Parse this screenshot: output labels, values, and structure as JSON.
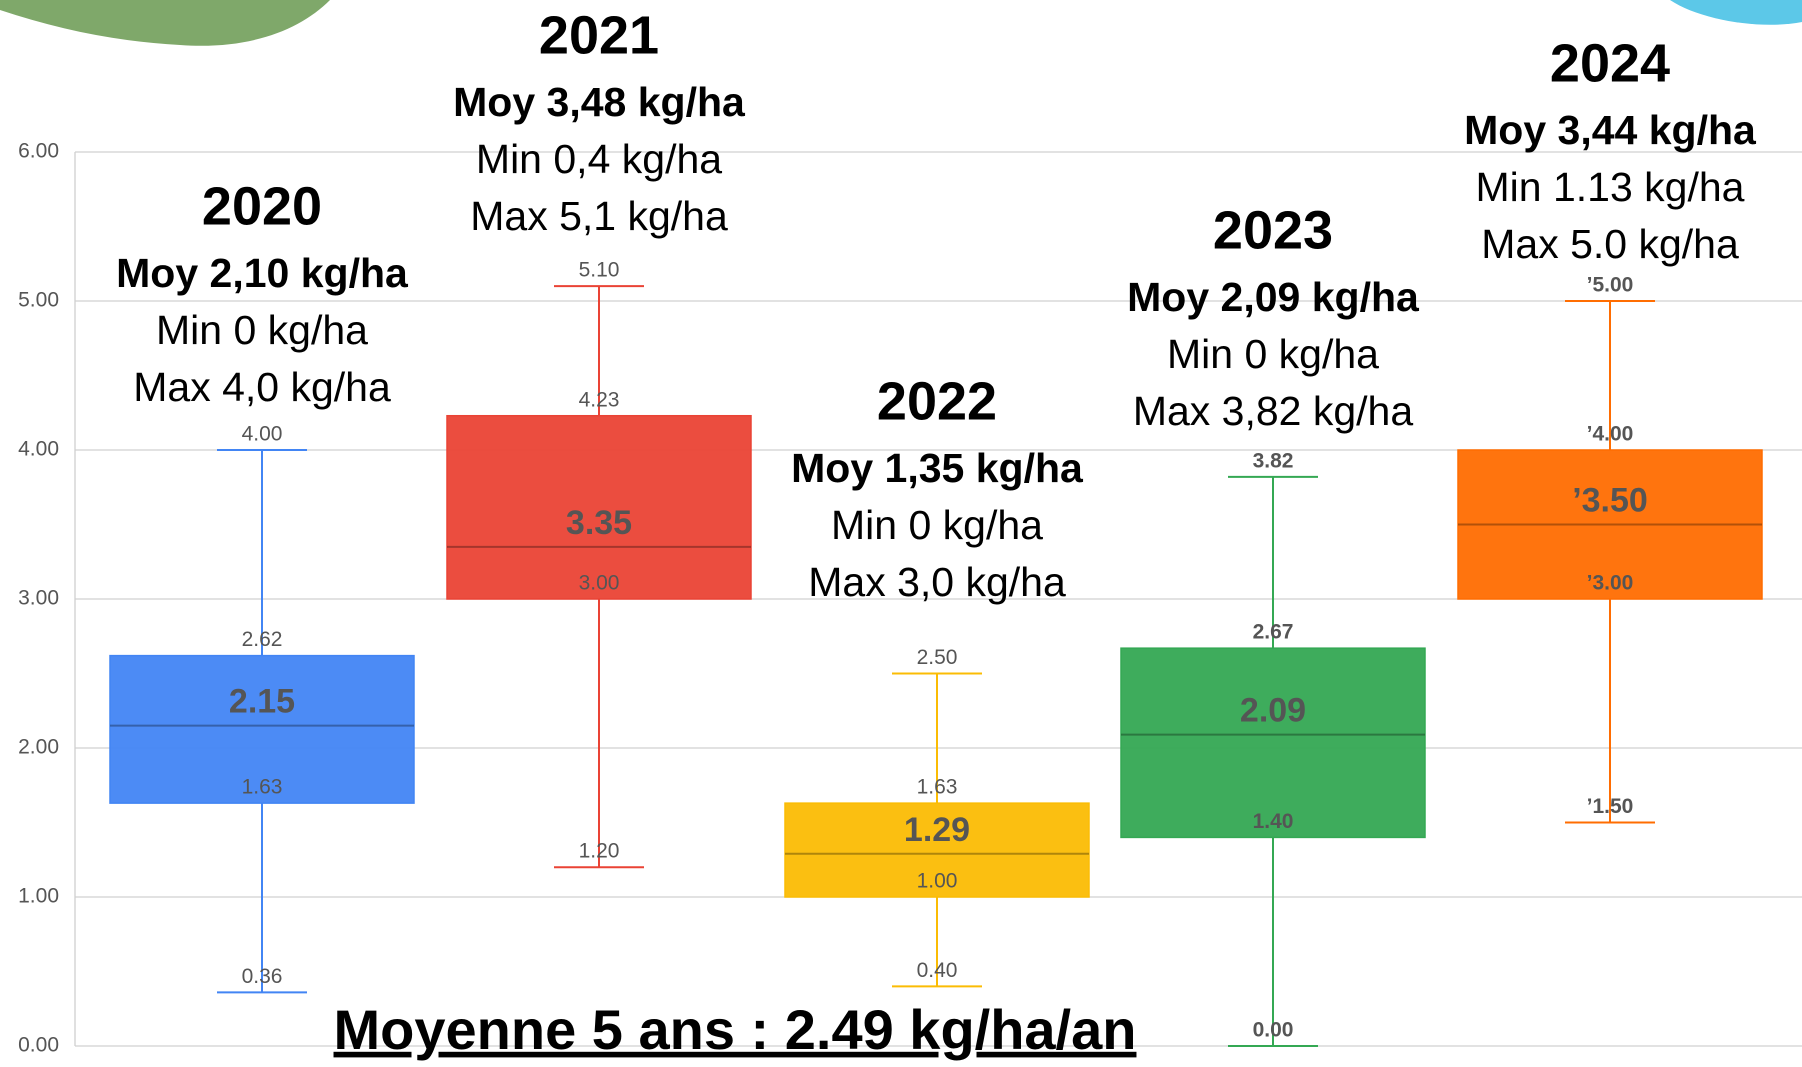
{
  "chart_data": {
    "type": "box",
    "ylim": [
      0,
      6
    ],
    "yticks": [
      {
        "value": 0,
        "label": "0.00"
      },
      {
        "value": 1,
        "label": "1.00"
      },
      {
        "value": 2,
        "label": "2.00"
      },
      {
        "value": 3,
        "label": "3.00"
      },
      {
        "value": 4,
        "label": "4.00"
      },
      {
        "value": 5,
        "label": "5.00"
      },
      {
        "value": 6,
        "label": "6.00"
      }
    ],
    "grid": true,
    "series": [
      {
        "name": "2020",
        "color": "#4285f4",
        "values": [
          0.36,
          1.63,
          2.15,
          2.62,
          4.0
        ],
        "value_labels": [
          "0.36",
          "1.63",
          "2.15",
          "2.62",
          "4.00"
        ],
        "annotations": [
          "Moy 2,10 kg/ha",
          "Min 0 kg/ha",
          "Max 4,0 kg/ha"
        ]
      },
      {
        "name": "2021",
        "color": "#ea4335",
        "values": [
          1.2,
          3.0,
          3.35,
          4.23,
          5.1
        ],
        "value_labels": [
          "1.20",
          "3.00",
          "3.35",
          "4.23",
          "5.10"
        ],
        "annotations": [
          "Moy 3,48 kg/ha",
          "Min 0,4 kg/ha",
          "Max 5,1 kg/ha"
        ]
      },
      {
        "name": "2022",
        "color": "#fbbc04",
        "values": [
          0.4,
          1.0,
          1.29,
          1.63,
          2.5
        ],
        "value_labels": [
          "0.40",
          "1.00",
          "1.29",
          "1.63",
          "2.50"
        ],
        "annotations": [
          "Moy 1,35 kg/ha",
          "Min 0 kg/ha",
          "Max 3,0 kg/ha"
        ]
      },
      {
        "name": "2023",
        "color": "#34a853",
        "values": [
          0.0,
          1.4,
          2.09,
          2.67,
          3.82
        ],
        "value_labels": [
          "0.00",
          "1.40",
          "2.09",
          "2.67",
          "3.82"
        ],
        "annotations": [
          "Moy 2,09 kg/ha",
          "Min 0 kg/ha",
          "Max 3,82 kg/ha"
        ]
      },
      {
        "name": "2024",
        "color": "#ff6d01",
        "values": [
          1.5,
          3.0,
          3.5,
          4.0,
          5.0
        ],
        "value_labels": [
          "’1.50",
          "’3.00",
          "’3.50",
          "’4.00",
          "’5.00"
        ],
        "annotations": [
          "Moy 3,44 kg/ha",
          "Min 1.13 kg/ha",
          "Max 5.0 kg/ha"
        ]
      }
    ],
    "footer": "Moyenne 5 ans : 2.49 kg/ha/an"
  }
}
